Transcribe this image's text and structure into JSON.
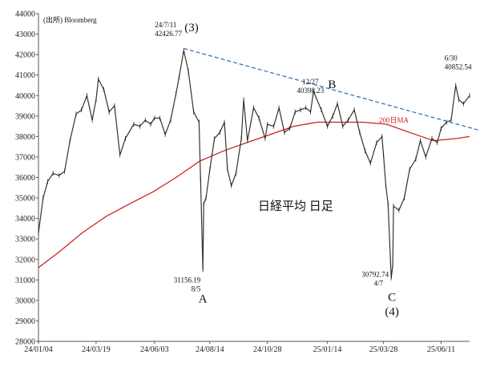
{
  "chart_data": {
    "type": "line",
    "title": "日経平均 日足",
    "source": "(出所) Bloomberg",
    "ylim": [
      28000,
      44000
    ],
    "yticks": [
      28000,
      29000,
      30000,
      31000,
      32000,
      33000,
      34000,
      35000,
      36000,
      37000,
      38000,
      39000,
      40000,
      41000,
      42000,
      43000,
      44000
    ],
    "xlim": [
      "2024-01-04",
      "2025-07-18"
    ],
    "xticks": [
      {
        "date": "2024-01-04",
        "label": "24/01/04"
      },
      {
        "date": "2024-03-19",
        "label": "24/03/19"
      },
      {
        "date": "2024-06-03",
        "label": "24/06/03"
      },
      {
        "date": "2024-08-14",
        "label": "24/08/14"
      },
      {
        "date": "2024-10-28",
        "label": "24/10/28"
      },
      {
        "date": "2025-01-14",
        "label": "25/01/14"
      },
      {
        "date": "2025-03-28",
        "label": "25/03/28"
      },
      {
        "date": "2025-06-11",
        "label": "25/06/11"
      }
    ],
    "series": [
      {
        "name": "",
        "color": "#333333",
        "points": [
          [
            "2024-01-04",
            33300
          ],
          [
            "2024-01-10",
            35000
          ],
          [
            "2024-01-16",
            35800
          ],
          [
            "2024-01-23",
            36200
          ],
          [
            "2024-01-31",
            36100
          ],
          [
            "2024-02-07",
            36300
          ],
          [
            "2024-02-14",
            37800
          ],
          [
            "2024-02-22",
            39100
          ],
          [
            "2024-02-29",
            39300
          ],
          [
            "2024-03-07",
            40000
          ],
          [
            "2024-03-14",
            38800
          ],
          [
            "2024-03-19",
            39800
          ],
          [
            "2024-03-22",
            40800
          ],
          [
            "2024-03-29",
            40300
          ],
          [
            "2024-04-05",
            39200
          ],
          [
            "2024-04-12",
            39500
          ],
          [
            "2024-04-19",
            37100
          ],
          [
            "2024-04-26",
            37900
          ],
          [
            "2024-05-07",
            38600
          ],
          [
            "2024-05-15",
            38500
          ],
          [
            "2024-05-22",
            38800
          ],
          [
            "2024-05-29",
            38600
          ],
          [
            "2024-06-03",
            38900
          ],
          [
            "2024-06-10",
            38900
          ],
          [
            "2024-06-17",
            38100
          ],
          [
            "2024-06-24",
            38800
          ],
          [
            "2024-07-01",
            40100
          ],
          [
            "2024-07-05",
            40900
          ],
          [
            "2024-07-11",
            42200
          ],
          [
            "2024-07-17",
            41200
          ],
          [
            "2024-07-24",
            39200
          ],
          [
            "2024-07-31",
            38700
          ],
          [
            "2024-08-02",
            35900
          ],
          [
            "2024-08-05",
            31500
          ],
          [
            "2024-08-06",
            34700
          ],
          [
            "2024-08-09",
            35000
          ],
          [
            "2024-08-14",
            36400
          ],
          [
            "2024-08-20",
            37900
          ],
          [
            "2024-08-27",
            38200
          ],
          [
            "2024-09-02",
            38700
          ],
          [
            "2024-09-06",
            36400
          ],
          [
            "2024-09-11",
            35600
          ],
          [
            "2024-09-17",
            36200
          ],
          [
            "2024-09-24",
            37900
          ],
          [
            "2024-09-27",
            39800
          ],
          [
            "2024-10-02",
            37800
          ],
          [
            "2024-10-10",
            39400
          ],
          [
            "2024-10-17",
            38900
          ],
          [
            "2024-10-25",
            37900
          ],
          [
            "2024-10-28",
            38600
          ],
          [
            "2024-11-05",
            38500
          ],
          [
            "2024-11-12",
            39400
          ],
          [
            "2024-11-19",
            38200
          ],
          [
            "2024-11-26",
            38400
          ],
          [
            "2024-12-03",
            39200
          ],
          [
            "2024-12-10",
            39300
          ],
          [
            "2024-12-17",
            39400
          ],
          [
            "2024-12-23",
            39200
          ],
          [
            "2024-12-27",
            40200
          ],
          [
            "2025-01-06",
            39300
          ],
          [
            "2025-01-14",
            38500
          ],
          [
            "2025-01-21",
            39000
          ],
          [
            "2025-01-27",
            39600
          ],
          [
            "2025-02-03",
            38500
          ],
          [
            "2025-02-10",
            38800
          ],
          [
            "2025-02-18",
            39300
          ],
          [
            "2025-02-25",
            38200
          ],
          [
            "2025-03-04",
            37300
          ],
          [
            "2025-03-11",
            36700
          ],
          [
            "2025-03-19",
            37700
          ],
          [
            "2025-03-26",
            38000
          ],
          [
            "2025-03-28",
            37100
          ],
          [
            "2025-03-31",
            35600
          ],
          [
            "2025-04-03",
            34700
          ],
          [
            "2025-04-07",
            31100
          ],
          [
            "2025-04-09",
            31700
          ],
          [
            "2025-04-10",
            34600
          ],
          [
            "2025-04-17",
            34400
          ],
          [
            "2025-04-24",
            35000
          ],
          [
            "2025-05-01",
            36400
          ],
          [
            "2025-05-09",
            36900
          ],
          [
            "2025-05-15",
            37800
          ],
          [
            "2025-05-22",
            37000
          ],
          [
            "2025-05-30",
            37900
          ],
          [
            "2025-06-06",
            37700
          ],
          [
            "2025-06-11",
            38400
          ],
          [
            "2025-06-18",
            38700
          ],
          [
            "2025-06-24",
            38800
          ],
          [
            "2025-06-30",
            40500
          ],
          [
            "2025-07-04",
            39800
          ],
          [
            "2025-07-10",
            39600
          ],
          [
            "2025-07-18",
            40000
          ]
        ]
      },
      {
        "name": "200日MA",
        "color": "#cc2222",
        "points": [
          [
            "2024-01-04",
            31600
          ],
          [
            "2024-02-01",
            32400
          ],
          [
            "2024-03-01",
            33300
          ],
          [
            "2024-04-01",
            34100
          ],
          [
            "2024-05-01",
            34700
          ],
          [
            "2024-06-01",
            35300
          ],
          [
            "2024-07-01",
            36000
          ],
          [
            "2024-08-01",
            36800
          ],
          [
            "2024-09-01",
            37300
          ],
          [
            "2024-10-01",
            37700
          ],
          [
            "2024-11-01",
            38100
          ],
          [
            "2024-12-01",
            38500
          ],
          [
            "2025-01-01",
            38700
          ],
          [
            "2025-02-01",
            38700
          ],
          [
            "2025-03-01",
            38700
          ],
          [
            "2025-04-01",
            38600
          ],
          [
            "2025-05-01",
            38200
          ],
          [
            "2025-06-01",
            37800
          ],
          [
            "2025-07-01",
            37900
          ],
          [
            "2025-07-18",
            38000
          ]
        ]
      }
    ],
    "trendline": {
      "color": "#2d6ab3",
      "start": [
        "2024-07-11",
        42300
      ],
      "end": [
        "2025-07-31",
        38300
      ]
    },
    "annotations": [
      {
        "name": "peak-3",
        "at": [
          "2024-07-11",
          42427
        ],
        "date": "24/7/11",
        "value": "42426.77",
        "label": "(3)"
      },
      {
        "name": "low-a",
        "at": [
          "2024-08-05",
          31156
        ],
        "value": "31156.19",
        "date": "8/5",
        "label": "A"
      },
      {
        "name": "high-b",
        "at": [
          "2024-12-27",
          40398
        ],
        "date": "12/27",
        "value": "40398.23",
        "label": "B"
      },
      {
        "name": "low-c",
        "at": [
          "2025-04-07",
          30793
        ],
        "value": "30792.74",
        "date": "4/7",
        "label": "C",
        "sub": "(4)"
      },
      {
        "name": "high-630",
        "at": [
          "2025-06-30",
          40853
        ],
        "date": "6/30",
        "value": "40852.54"
      }
    ],
    "ma_label": "200日MA",
    "grid": false,
    "legend": "none"
  }
}
